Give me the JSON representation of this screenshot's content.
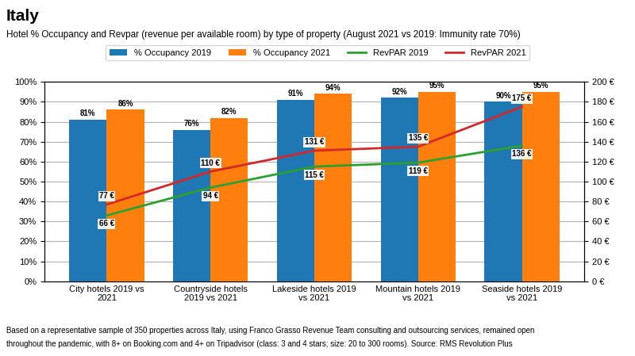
{
  "chart_data": {
    "type": "bar",
    "title": "Italy",
    "subtitle": "Hotel % Occupancy and Revpar (revenue per available room) by type of property (August 2021 vs 2019: Immunity rate 70%)",
    "annotations": [
      "Based on a representative sample of 350 properties across Italy, using Franco Grasso Revenue Team consulting and outsourcing services, remained open",
      "throughout the pandemic, with 8+ on Booking.com and 4+ on Tripadvisor (class: 3 and 4 stars; size: 20 to 300 rooms). Source: RMS Revolution Plus"
    ],
    "categories": [
      "City hotels 2019 vs 2021",
      "Countryside hotels 2019 vs 2021",
      "Lakeside hotels 2019 vs 2021",
      "Mountain hotels 2019 vs 2021",
      "Seaside hotels 2019 vs 2021"
    ],
    "series": [
      {
        "name": "% Occupancy 2019",
        "type": "bar",
        "values": [
          0.81,
          0.76,
          0.91,
          0.92,
          0.9
        ],
        "value_labels": [
          "81%",
          "76%",
          "91%",
          "92%",
          "90%"
        ]
      },
      {
        "name": "% Occupancy 2021",
        "type": "bar",
        "values": [
          0.86,
          0.82,
          0.94,
          0.95,
          0.95
        ],
        "value_labels": [
          "86%",
          "82%",
          "94%",
          "95%",
          "95%"
        ]
      },
      {
        "name": "RevPAR 2019",
        "type": "line",
        "axis": "y2",
        "values": [
          66,
          94,
          115,
          119,
          136
        ],
        "value_labels": [
          "66 €",
          "94 €",
          "115 €",
          "119 €",
          "136 €"
        ]
      },
      {
        "name": "RevPAR 2021",
        "type": "line",
        "axis": "y2",
        "values": [
          77,
          110,
          131,
          135,
          175
        ],
        "value_labels": [
          "77 €",
          "110 €",
          "131 €",
          "135 €",
          "175 €"
        ]
      }
    ],
    "ylim": [
      0,
      1.0
    ],
    "yticks": [
      {
        "value": 0,
        "label": "0%"
      },
      {
        "value": 0.1,
        "label": "10%"
      },
      {
        "value": 0.2,
        "label": "20%"
      },
      {
        "value": 0.3,
        "label": "30%"
      },
      {
        "value": 0.4,
        "label": "40%"
      },
      {
        "value": 0.5,
        "label": "50%"
      },
      {
        "value": 0.6,
        "label": "60%"
      },
      {
        "value": 0.7,
        "label": "70%"
      },
      {
        "value": 0.8,
        "label": "80%"
      },
      {
        "value": 0.9,
        "label": "90%"
      },
      {
        "value": 1.0,
        "label": "100%"
      }
    ],
    "y2lim": [
      0,
      200
    ],
    "y2ticks": [
      {
        "value": 0,
        "label": "0 €"
      },
      {
        "value": 20,
        "label": "20 €"
      },
      {
        "value": 40,
        "label": "40 €"
      },
      {
        "value": 60,
        "label": "60 €"
      },
      {
        "value": 80,
        "label": "80 €"
      },
      {
        "value": 100,
        "label": "100 €"
      },
      {
        "value": 120,
        "label": "120 €"
      },
      {
        "value": 140,
        "label": "140 €"
      },
      {
        "value": 160,
        "label": "160 €"
      },
      {
        "value": 180,
        "label": "180 €"
      },
      {
        "value": 200,
        "label": "200 €"
      }
    ],
    "grid": true,
    "legend": "upper center",
    "data_labels": true
  }
}
